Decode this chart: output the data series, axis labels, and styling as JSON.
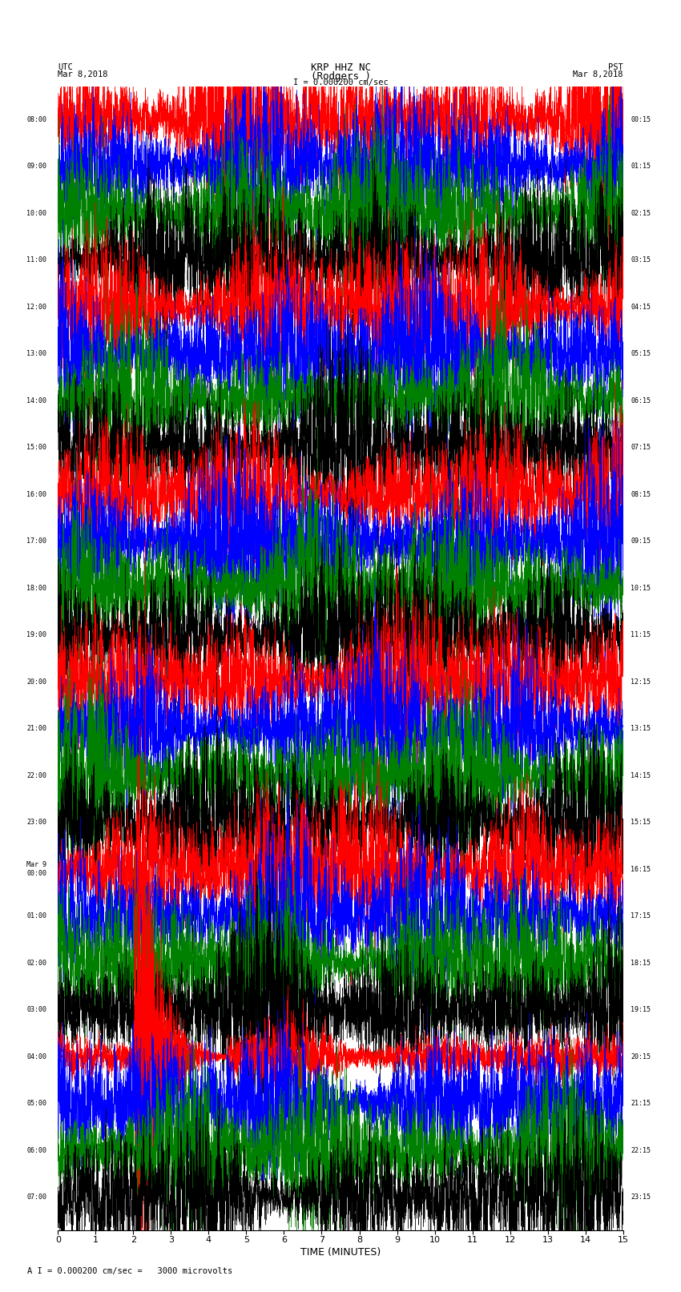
{
  "title_line1": "KRP HHZ NC",
  "title_line2": "(Rodgers )",
  "scale_text": "I = 0.000200 cm/sec",
  "footer_text": "A I = 0.000200 cm/sec =   3000 microvolts",
  "utc_label": "UTC",
  "utc_date": "Mar 8,2018",
  "pst_label": "PST",
  "pst_date": "Mar 8,2018",
  "xlabel": "TIME (MINUTES)",
  "left_times": [
    "08:00",
    "09:00",
    "10:00",
    "11:00",
    "12:00",
    "13:00",
    "14:00",
    "15:00",
    "16:00",
    "17:00",
    "18:00",
    "19:00",
    "20:00",
    "21:00",
    "22:00",
    "23:00",
    "Mar 9\n00:00",
    "01:00",
    "02:00",
    "03:00",
    "04:00",
    "05:00",
    "06:00",
    "07:00"
  ],
  "right_times": [
    "00:15",
    "01:15",
    "02:15",
    "03:15",
    "04:15",
    "05:15",
    "06:15",
    "07:15",
    "08:15",
    "09:15",
    "10:15",
    "11:15",
    "12:15",
    "13:15",
    "14:15",
    "15:15",
    "16:15",
    "17:15",
    "18:15",
    "19:15",
    "20:15",
    "21:15",
    "22:15",
    "23:15"
  ],
  "num_traces": 24,
  "minutes_per_trace": 15,
  "samples_per_minute": 600,
  "trace_colors": [
    "red",
    "blue",
    "green",
    "black"
  ],
  "bg_color": "white",
  "amplitude_scale": 0.55,
  "noise_seed": 42,
  "earthquake_trace": 20,
  "earthquake_minute": 2.0,
  "earthquake_amplitude": 4.0,
  "earthquake_duration_minutes": 2.5,
  "fig_width": 8.5,
  "fig_height": 16.13,
  "dpi": 100
}
